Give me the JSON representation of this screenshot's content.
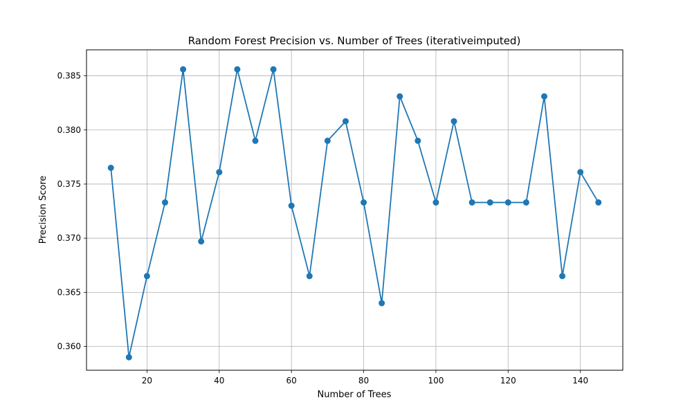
{
  "chart_data": {
    "type": "line",
    "title": "Random Forest Precision vs. Number of Trees (iterativeimputed)",
    "xlabel": "Number of Trees",
    "ylabel": "Precision Score",
    "xlim": [
      3.25,
      151.75
    ],
    "ylim": [
      0.3578,
      0.3874
    ],
    "xticks": [
      20,
      40,
      60,
      80,
      100,
      120,
      140
    ],
    "xtick_labels": [
      "20",
      "40",
      "60",
      "80",
      "100",
      "120",
      "140"
    ],
    "yticks": [
      0.36,
      0.365,
      0.37,
      0.375,
      0.38,
      0.385
    ],
    "ytick_labels": [
      "0.360",
      "0.365",
      "0.370",
      "0.375",
      "0.380",
      "0.385"
    ],
    "grid": true,
    "legend": "none",
    "series": [
      {
        "color": "#1f77b4",
        "marker": "circle",
        "x": [
          10,
          15,
          20,
          25,
          30,
          35,
          40,
          45,
          50,
          55,
          60,
          65,
          70,
          75,
          80,
          85,
          90,
          95,
          100,
          105,
          110,
          115,
          120,
          125,
          130,
          135,
          140,
          145
        ],
        "y": [
          0.3765,
          0.359,
          0.3665,
          0.3733,
          0.3856,
          0.3697,
          0.3761,
          0.3856,
          0.379,
          0.3856,
          0.373,
          0.3665,
          0.379,
          0.3808,
          0.3733,
          0.364,
          0.3831,
          0.379,
          0.3733,
          0.3808,
          0.3733,
          0.3733,
          0.3733,
          0.3733,
          0.3831,
          0.3665,
          0.3761,
          0.3733
        ]
      }
    ]
  }
}
